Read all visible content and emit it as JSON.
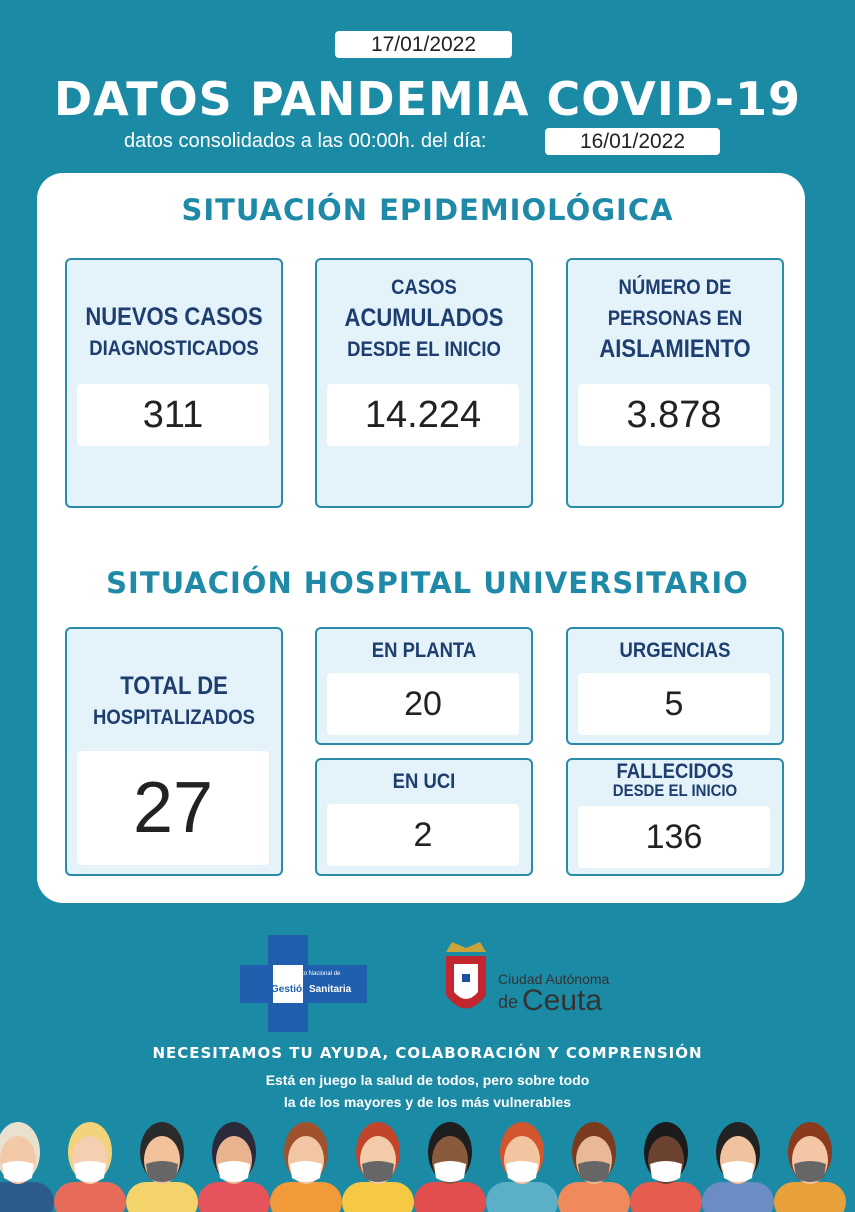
{
  "header": {
    "date": "17/01/2022",
    "title": "DATOS PANDEMIA COVID-19",
    "subtitle": "datos consolidados a las 00:00h. del día:",
    "data_date": "16/01/2022"
  },
  "epidemiology": {
    "title": "SITUACIÓN EPIDEMIOLÓGICA",
    "cards": [
      {
        "label": [
          {
            "text": "NUEVOS CASOS",
            "strong": true
          },
          {
            "text": "DIAGNOSTICADOS",
            "strong": false
          }
        ],
        "value": "311"
      },
      {
        "label": [
          {
            "text": "CASOS",
            "strong": false
          },
          {
            "text": "ACUMULADOS",
            "strong": true
          },
          {
            "text": "DESDE EL INICIO",
            "strong": false
          }
        ],
        "value": "14.224"
      },
      {
        "label": [
          {
            "text": "NÚMERO DE",
            "strong": false
          },
          {
            "text": "PERSONAS EN",
            "strong": false
          },
          {
            "text": "AISLAMIENTO",
            "strong": true
          }
        ],
        "value": "3.878"
      }
    ]
  },
  "hospital": {
    "title": "SITUACIÓN HOSPITAL UNIVERSITARIO",
    "total": {
      "label": [
        {
          "text": "TOTAL DE",
          "strong": true
        },
        {
          "text": "HOSPITALIZADOS",
          "strong": false
        }
      ],
      "value": "27"
    },
    "cards": [
      {
        "label": [
          {
            "text": "EN PLANTA",
            "strong": false
          }
        ],
        "value": "20"
      },
      {
        "label": [
          {
            "text": "URGENCIAS",
            "strong": false
          }
        ],
        "value": "5"
      },
      {
        "label": [
          {
            "text": "EN UCI",
            "strong": false
          }
        ],
        "value": "2"
      },
      {
        "label": [
          {
            "text": "FALLECIDOS",
            "strong": false
          },
          {
            "text": "DESDE EL INICIO",
            "strong": false
          }
        ],
        "value": "136"
      }
    ]
  },
  "logos": {
    "ingesa": [
      "Instituto Nacional de",
      "Gestión",
      "Sanitaria"
    ],
    "ceuta": [
      "Ciudad Autónoma",
      "de",
      "Ceuta"
    ]
  },
  "footer": {
    "headline": "NECESITAMOS TU AYUDA, COLABORACIÓN  Y COMPRENSIÓN",
    "lines": [
      "Está en juego la salud de todos, pero sobre todo",
      "la de los mayores y de los más vulnerables"
    ]
  }
}
